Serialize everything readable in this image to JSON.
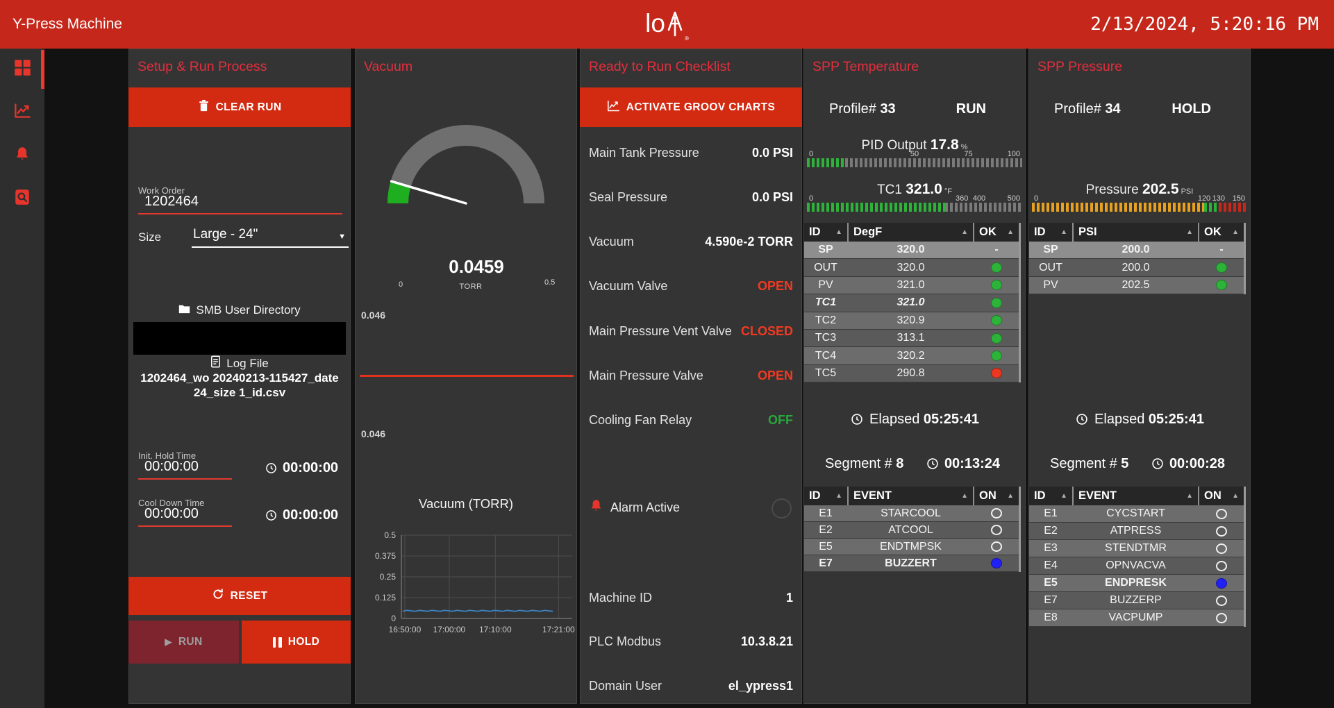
{
  "topbar": {
    "title": "Y-Press Machine",
    "logo_text": "lo",
    "datetime": "2/13/2024, 5:20:16 PM"
  },
  "sidebar": {
    "items": [
      {
        "name": "dashboard"
      },
      {
        "name": "trends"
      },
      {
        "name": "alarms"
      },
      {
        "name": "event-log"
      }
    ]
  },
  "setup": {
    "title": "Setup & Run Process",
    "clear_run_label": "CLEAR RUN",
    "work_order": {
      "label": "Work Order",
      "value": "1202464"
    },
    "size": {
      "label": "Size",
      "value": "Large - 24\""
    },
    "smb_label": "SMB User Directory",
    "log_file": {
      "label": "Log File",
      "name": "1202464_wo 20240213-115427_date 24_size 1_id.csv"
    },
    "init_hold": {
      "label": "Init. Hold Time",
      "value": "00:00:00",
      "timer": "00:00:00"
    },
    "cool_down": {
      "label": "Cool Down Time",
      "value": "00:00:00",
      "timer": "00:00:00"
    },
    "reset_label": "RESET",
    "run_label": "RUN",
    "hold_label": "HOLD"
  },
  "vacuum": {
    "title": "Vacuum",
    "gauge": {
      "value": "0.0459",
      "unit": "TORR",
      "min_label": "0",
      "max_label": "0.5",
      "min": 0,
      "max": 0.5,
      "reading": 0.0459
    },
    "readout_top": "0.046",
    "readout_bottom": "0.046"
  },
  "chart_data": {
    "type": "line",
    "title": "Vacuum (TORR)",
    "xlabel": "",
    "ylabel": "",
    "x_ticks": [
      "16:50:00",
      "17:00:00",
      "17:10:00",
      "17:21:00"
    ],
    "y_ticks": [
      0,
      0.125,
      0.25,
      0.375,
      0.5
    ],
    "ylim": [
      0,
      0.5
    ],
    "grid": true,
    "legend": "none",
    "series": [
      {
        "name": "Vacuum",
        "color": "#3d83c0",
        "value": 0.046,
        "shape": "flat"
      }
    ]
  },
  "checklist": {
    "title": "Ready to Run Checklist",
    "activate_label": "ACTIVATE GROOV CHARTS",
    "items": [
      {
        "label": "Main Tank Pressure",
        "value": "0.0 PSI",
        "status": "normal"
      },
      {
        "label": "Seal Pressure",
        "value": "0.0 PSI",
        "status": "normal"
      },
      {
        "label": "Vacuum",
        "value": "4.590e-2 TORR",
        "status": "normal"
      },
      {
        "label": "Vacuum Valve",
        "value": "OPEN",
        "status": "alert"
      },
      {
        "label": "Main Pressure Vent Valve",
        "value": "CLOSED",
        "status": "alert"
      },
      {
        "label": "Main Pressure Valve",
        "value": "OPEN",
        "status": "alert"
      },
      {
        "label": "Cooling Fan Relay",
        "value": "OFF",
        "status": "ok"
      }
    ],
    "alarm_label": "Alarm Active",
    "info": [
      {
        "label": "Machine ID",
        "value": "1"
      },
      {
        "label": "PLC Modbus",
        "value": "10.3.8.21"
      },
      {
        "label": "Domain User",
        "value": "el_ypress1"
      }
    ]
  },
  "temperature": {
    "title": "SPP Temperature",
    "profile_label": "Profile#",
    "profile_number": "33",
    "state": "RUN",
    "pid_bar": {
      "label": "PID Output",
      "value": "17.8",
      "unit": "%",
      "fill_pct": 17.8,
      "ticks": [
        {
          "label": "0",
          "at": 0
        },
        {
          "label": "50",
          "at": 50
        },
        {
          "label": "75",
          "at": 75
        },
        {
          "label": "100",
          "at": 100
        }
      ],
      "segments": [
        {
          "color": "#2db33a",
          "to": 17.8
        },
        {
          "color": "#7a7a7a",
          "to": 100
        }
      ]
    },
    "tc1_bar": {
      "label": "TC1",
      "value": "321.0",
      "unit": "°F",
      "fill_pct": 64.2,
      "ticks": [
        {
          "label": "0",
          "at": 0
        },
        {
          "label": "360",
          "at": 72
        },
        {
          "label": "400",
          "at": 80
        },
        {
          "label": "500",
          "at": 100
        }
      ],
      "segments": [
        {
          "color": "#2db33a",
          "to": 64.2
        },
        {
          "color": "#7a7a7a",
          "to": 100
        }
      ]
    },
    "table": {
      "headers": [
        "ID",
        "DegF",
        "OK"
      ],
      "rows": [
        {
          "id": "SP",
          "value": "320.0",
          "ok": "dash",
          "em": "sp"
        },
        {
          "id": "OUT",
          "value": "320.0",
          "ok": "green"
        },
        {
          "id": "PV",
          "value": "321.0",
          "ok": "green"
        },
        {
          "id": "TC1",
          "value": "321.0",
          "ok": "green",
          "em": "bi"
        },
        {
          "id": "TC2",
          "value": "320.9",
          "ok": "green"
        },
        {
          "id": "TC3",
          "value": "313.1",
          "ok": "green"
        },
        {
          "id": "TC4",
          "value": "320.2",
          "ok": "green"
        },
        {
          "id": "TC5",
          "value": "290.8",
          "ok": "red"
        }
      ]
    },
    "elapsed_label": "Elapsed",
    "elapsed": "05:25:41",
    "segment_label": "Segment #",
    "segment_number": "8",
    "segment_time": "00:13:24",
    "events": {
      "headers": [
        "ID",
        "EVENT",
        "ON"
      ],
      "rows": [
        {
          "id": "E1",
          "value": "STARCOOL",
          "ok": "off"
        },
        {
          "id": "E2",
          "value": "ATCOOL",
          "ok": "off"
        },
        {
          "id": "E5",
          "value": "ENDTMPSK",
          "ok": "off"
        },
        {
          "id": "E7",
          "value": "BUZZERT",
          "ok": "blue",
          "em": "b"
        }
      ]
    }
  },
  "pressure": {
    "title": "SPP Pressure",
    "profile_label": "Profile#",
    "profile_number": "34",
    "state": "HOLD",
    "bar": {
      "label": "Pressure",
      "value": "202.5",
      "unit": "PSI",
      "fill_pct": 100,
      "ticks": [
        {
          "label": "0",
          "at": 0
        },
        {
          "label": "120",
          "at": 80
        },
        {
          "label": "130",
          "at": 86.7
        },
        {
          "label": "150",
          "at": 100
        }
      ],
      "segments": [
        {
          "color": "#e7a11f",
          "to": 80
        },
        {
          "color": "#2db33a",
          "to": 86.7
        },
        {
          "color": "#c8271c",
          "to": 100
        }
      ]
    },
    "table": {
      "headers": [
        "ID",
        "PSI",
        "OK"
      ],
      "rows": [
        {
          "id": "SP",
          "value": "200.0",
          "ok": "dash",
          "em": "sp"
        },
        {
          "id": "OUT",
          "value": "200.0",
          "ok": "green"
        },
        {
          "id": "PV",
          "value": "202.5",
          "ok": "green"
        }
      ]
    },
    "elapsed_label": "Elapsed",
    "elapsed": "05:25:41",
    "segment_label": "Segment #",
    "segment_number": "5",
    "segment_time": "00:00:28",
    "events": {
      "headers": [
        "ID",
        "EVENT",
        "ON"
      ],
      "rows": [
        {
          "id": "E1",
          "value": "CYCSTART",
          "ok": "off"
        },
        {
          "id": "E2",
          "value": "ATPRESS",
          "ok": "off"
        },
        {
          "id": "E3",
          "value": "STENDTMR",
          "ok": "off"
        },
        {
          "id": "E4",
          "value": "OPNVACVA",
          "ok": "off"
        },
        {
          "id": "E5",
          "value": "ENDPRESK",
          "ok": "blue",
          "em": "b"
        },
        {
          "id": "E7",
          "value": "BUZZERP",
          "ok": "off"
        },
        {
          "id": "E8",
          "value": "VACPUMP",
          "ok": "off"
        }
      ]
    }
  }
}
